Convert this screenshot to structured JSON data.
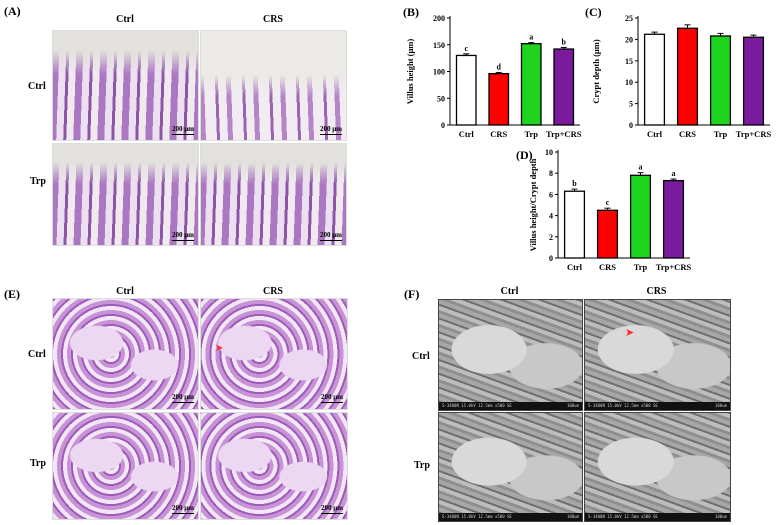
{
  "panels": {
    "A": {
      "label": "(A)",
      "col_headers": [
        "Ctrl",
        "CRS"
      ],
      "row_labels": [
        "Ctrl",
        "Trp"
      ],
      "scale_bar": "200 μm"
    },
    "E": {
      "label": "(E)",
      "col_headers": [
        "Ctrl",
        "CRS"
      ],
      "row_labels": [
        "Ctrl",
        "Trp"
      ],
      "scale_bar": "200 μm"
    },
    "F": {
      "label": "(F)",
      "col_headers": [
        "Ctrl",
        "CRS"
      ],
      "row_labels": [
        "Ctrl",
        "Trp"
      ],
      "sem_caption": "S-3400N 15.0kV 12.5mm x500 SE",
      "sem_scale": "100um"
    }
  },
  "chart_data": [
    {
      "panel_label": "(B)",
      "type": "bar",
      "categories": [
        "Ctrl",
        "CRS",
        "Trp",
        "Trp+CRS"
      ],
      "values": [
        130,
        96,
        152,
        142
      ],
      "errors": [
        3,
        2,
        2,
        3
      ],
      "letters": [
        "c",
        "d",
        "a",
        "b"
      ],
      "colors": [
        "#ffffff",
        "#ff0000",
        "#1fd41f",
        "#7a1a9c"
      ],
      "ylabel": "Villus  height (μm)",
      "ylim": [
        0,
        200
      ],
      "yticks": [
        0,
        50,
        100,
        150,
        200
      ]
    },
    {
      "panel_label": "(C)",
      "type": "bar",
      "categories": [
        "Ctrl",
        "CRS",
        "Trp",
        "Trp+CRS"
      ],
      "values": [
        21.2,
        22.6,
        20.8,
        20.5
      ],
      "errors": [
        0.5,
        0.8,
        0.6,
        0.5
      ],
      "letters": [
        "",
        "",
        "",
        ""
      ],
      "colors": [
        "#ffffff",
        "#ff0000",
        "#1fd41f",
        "#7a1a9c"
      ],
      "ylabel": "Crypt depth (μm)",
      "ylim": [
        0,
        25
      ],
      "yticks": [
        0,
        5,
        10,
        15,
        20,
        25
      ]
    },
    {
      "panel_label": "(D)",
      "type": "bar",
      "categories": [
        "Ctrl",
        "CRS",
        "Trp",
        "Trp+CRS"
      ],
      "values": [
        6.3,
        4.5,
        7.8,
        7.3
      ],
      "errors": [
        0.2,
        0.2,
        0.25,
        0.15
      ],
      "letters": [
        "b",
        "c",
        "a",
        "a"
      ],
      "colors": [
        "#ffffff",
        "#ff0000",
        "#1fd41f",
        "#7a1a9c"
      ],
      "ylabel": "Villus  height/Crypt depth",
      "ylim": [
        0,
        10
      ],
      "yticks": [
        0,
        2,
        4,
        6,
        8,
        10
      ]
    }
  ]
}
